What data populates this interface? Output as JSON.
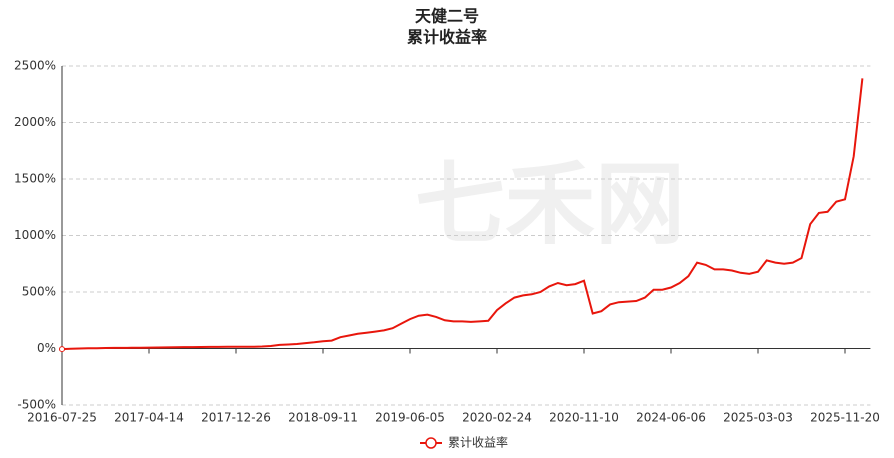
{
  "chart_data": {
    "type": "line",
    "title": "天健二号",
    "subtitle": "累计收益率",
    "watermark": "七禾网",
    "categories": [
      "2016-07-25",
      null,
      null,
      null,
      null,
      null,
      null,
      null,
      null,
      null,
      "2017-04-14",
      null,
      null,
      null,
      null,
      null,
      null,
      null,
      null,
      null,
      "2017-12-26",
      null,
      null,
      null,
      null,
      null,
      null,
      null,
      null,
      null,
      "2018-09-11",
      null,
      null,
      null,
      null,
      null,
      null,
      null,
      null,
      null,
      "2019-06-05",
      null,
      null,
      null,
      null,
      null,
      null,
      null,
      null,
      null,
      "2020-02-24",
      null,
      null,
      null,
      null,
      null,
      null,
      null,
      null,
      null,
      "2020-11-10",
      null,
      null,
      null,
      null,
      null,
      null,
      null,
      null,
      null,
      "2024-06-06",
      null,
      null,
      null,
      null,
      null,
      null,
      null,
      null,
      null,
      "2025-03-03",
      null,
      null,
      null,
      null,
      null,
      null,
      null,
      null,
      null,
      "2025-11-20",
      null,
      null
    ],
    "series": [
      {
        "name": "累计收益率",
        "color": "#e8160c",
        "values": [
          -5,
          -3,
          0,
          2,
          3,
          4,
          5,
          5,
          6,
          7,
          8,
          9,
          10,
          11,
          12,
          12,
          13,
          14,
          14,
          15,
          15,
          16,
          15,
          18,
          22,
          32,
          35,
          40,
          48,
          55,
          65,
          70,
          100,
          115,
          130,
          140,
          150,
          160,
          180,
          220,
          260,
          290,
          300,
          280,
          250,
          240,
          240,
          235,
          240,
          245,
          340,
          400,
          450,
          470,
          480,
          500,
          550,
          580,
          560,
          570,
          600,
          310,
          330,
          390,
          410,
          415,
          420,
          450,
          520,
          520,
          540,
          580,
          640,
          760,
          740,
          700,
          700,
          690,
          670,
          660,
          680,
          780,
          760,
          750,
          760,
          800,
          1100,
          1200,
          1210,
          1300,
          1320,
          1700,
          2390
        ]
      }
    ],
    "ylim": [
      -500,
      2500
    ],
    "yticks": [
      {
        "value": -500,
        "label": "-500%"
      },
      {
        "value": 0,
        "label": "0%"
      },
      {
        "value": 500,
        "label": "500%"
      },
      {
        "value": 1000,
        "label": "1000%"
      },
      {
        "value": 1500,
        "label": "1500%"
      },
      {
        "value": 2000,
        "label": "2000%"
      },
      {
        "value": 2500,
        "label": "2500%"
      }
    ],
    "grid": true
  }
}
